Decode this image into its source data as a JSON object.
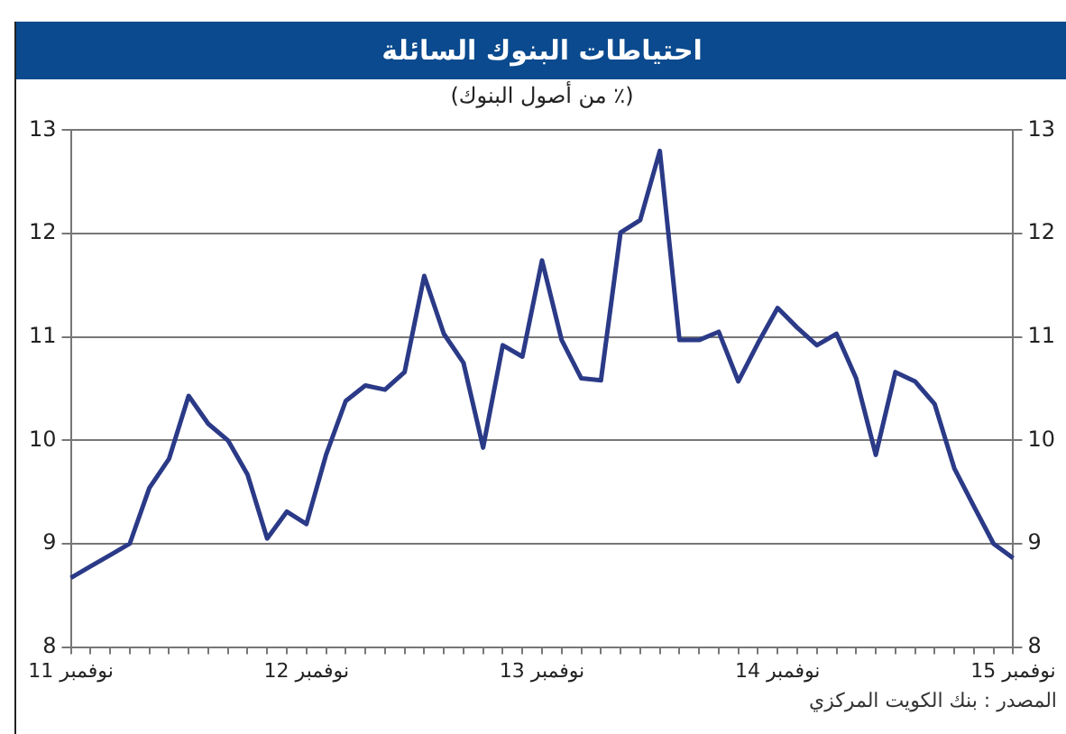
{
  "chart_data": {
    "type": "line",
    "title": "احتياطات البنوك السائلة",
    "subtitle": "(٪ من أصول البنوك)",
    "categories": [
      "نوفمبر 11",
      null,
      null,
      null,
      null,
      null,
      null,
      null,
      null,
      null,
      null,
      null,
      "نوفمبر 12",
      null,
      null,
      null,
      null,
      null,
      null,
      null,
      null,
      null,
      null,
      null,
      "نوفمبر 13",
      null,
      null,
      null,
      null,
      null,
      null,
      null,
      null,
      null,
      null,
      null,
      "نوفمبر 14",
      null,
      null,
      null,
      null,
      null,
      null,
      null,
      null,
      null,
      null,
      null,
      "نوفمبر 15"
    ],
    "series": [
      {
        "color": "#2b3a87",
        "values": [
          8.67,
          8.78,
          8.89,
          9.0,
          9.54,
          9.82,
          10.43,
          10.16,
          10.0,
          9.67,
          9.05,
          9.31,
          9.19,
          9.86,
          10.38,
          10.53,
          10.49,
          10.66,
          11.59,
          11.03,
          10.75,
          9.93,
          10.92,
          10.81,
          11.74,
          10.97,
          10.6,
          10.58,
          12.01,
          12.13,
          12.8,
          10.97,
          10.97,
          11.05,
          10.57,
          10.94,
          11.28,
          11.09,
          10.92,
          11.03,
          10.6,
          9.86,
          10.66,
          10.57,
          10.35,
          9.73,
          9.36,
          9.0,
          8.86
        ]
      }
    ],
    "ylim": [
      8,
      13
    ],
    "yticks": [
      8,
      9,
      10,
      11,
      12,
      13
    ],
    "y2lim": [
      8,
      13
    ],
    "y2ticks": [
      8,
      9,
      10,
      11,
      12,
      13
    ],
    "grid": "y",
    "legend": false,
    "marker": "none",
    "line_style": "solid",
    "annotations": [
      "المصدر : بنك الكويت المركزي"
    ]
  }
}
